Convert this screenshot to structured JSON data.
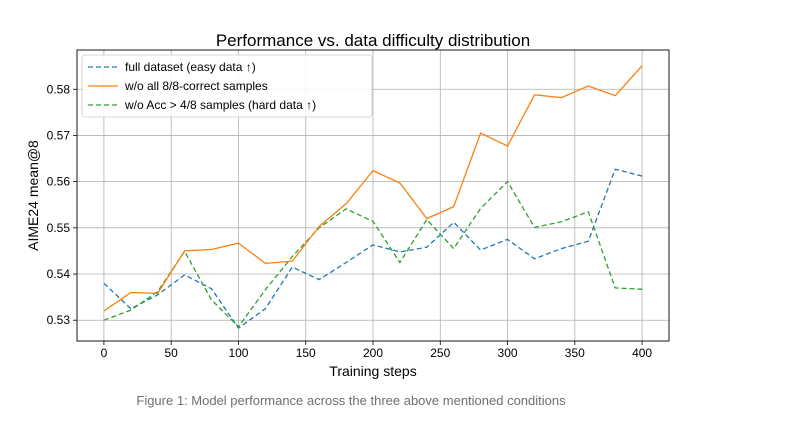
{
  "chart_data": {
    "type": "line",
    "title": "Performance vs. data difficulty distribution",
    "xlabel": "Training steps",
    "ylabel": "AIME24 mean@8",
    "xlim": [
      -20,
      420
    ],
    "ylim": [
      0.5255,
      0.5885
    ],
    "xticks": [
      0,
      50,
      100,
      150,
      200,
      250,
      300,
      350,
      400
    ],
    "yticks": [
      0.53,
      0.54,
      0.55,
      0.56,
      0.57,
      0.58
    ],
    "ytick_labels": [
      "0.53",
      "0.54",
      "0.55",
      "0.56",
      "0.57",
      "0.58"
    ],
    "grid": true,
    "legend_position": "upper-left",
    "x": [
      0,
      20,
      40,
      60,
      80,
      100,
      120,
      140,
      160,
      180,
      200,
      220,
      240,
      260,
      280,
      300,
      320,
      340,
      360,
      380,
      400
    ],
    "series": [
      {
        "name": "full dataset (easy data ↑)",
        "color": "#1f77b4",
        "dash": "dashed",
        "values": [
          0.538,
          0.5325,
          0.5355,
          0.5398,
          0.5368,
          0.5283,
          0.5325,
          0.5415,
          0.5388,
          0.5425,
          0.5463,
          0.5448,
          0.5458,
          0.5512,
          0.5452,
          0.5475,
          0.5433,
          0.5455,
          0.5471,
          0.5627,
          0.5612
        ]
      },
      {
        "name": "w/o all 8/8-correct samples",
        "color": "#ff7f0e",
        "dash": "solid",
        "values": [
          0.532,
          0.536,
          0.5358,
          0.545,
          0.5453,
          0.5467,
          0.5423,
          0.5428,
          0.5503,
          0.5552,
          0.5624,
          0.5597,
          0.552,
          0.5546,
          0.5705,
          0.5677,
          0.5788,
          0.5782,
          0.5807,
          0.5786,
          0.5851
        ]
      },
      {
        "name": "w/o Acc > 4/8 samples  (hard data ↑)",
        "color": "#2ca02c",
        "dash": "dashed",
        "values": [
          0.53,
          0.5322,
          0.5362,
          0.5449,
          0.5344,
          0.5286,
          0.5366,
          0.5438,
          0.55,
          0.5541,
          0.5514,
          0.5425,
          0.5518,
          0.5455,
          0.5542,
          0.56,
          0.5501,
          0.5513,
          0.5535,
          0.537,
          0.5367
        ]
      }
    ]
  },
  "caption": "Figure 1: Model performance across the three above mentioned conditions"
}
